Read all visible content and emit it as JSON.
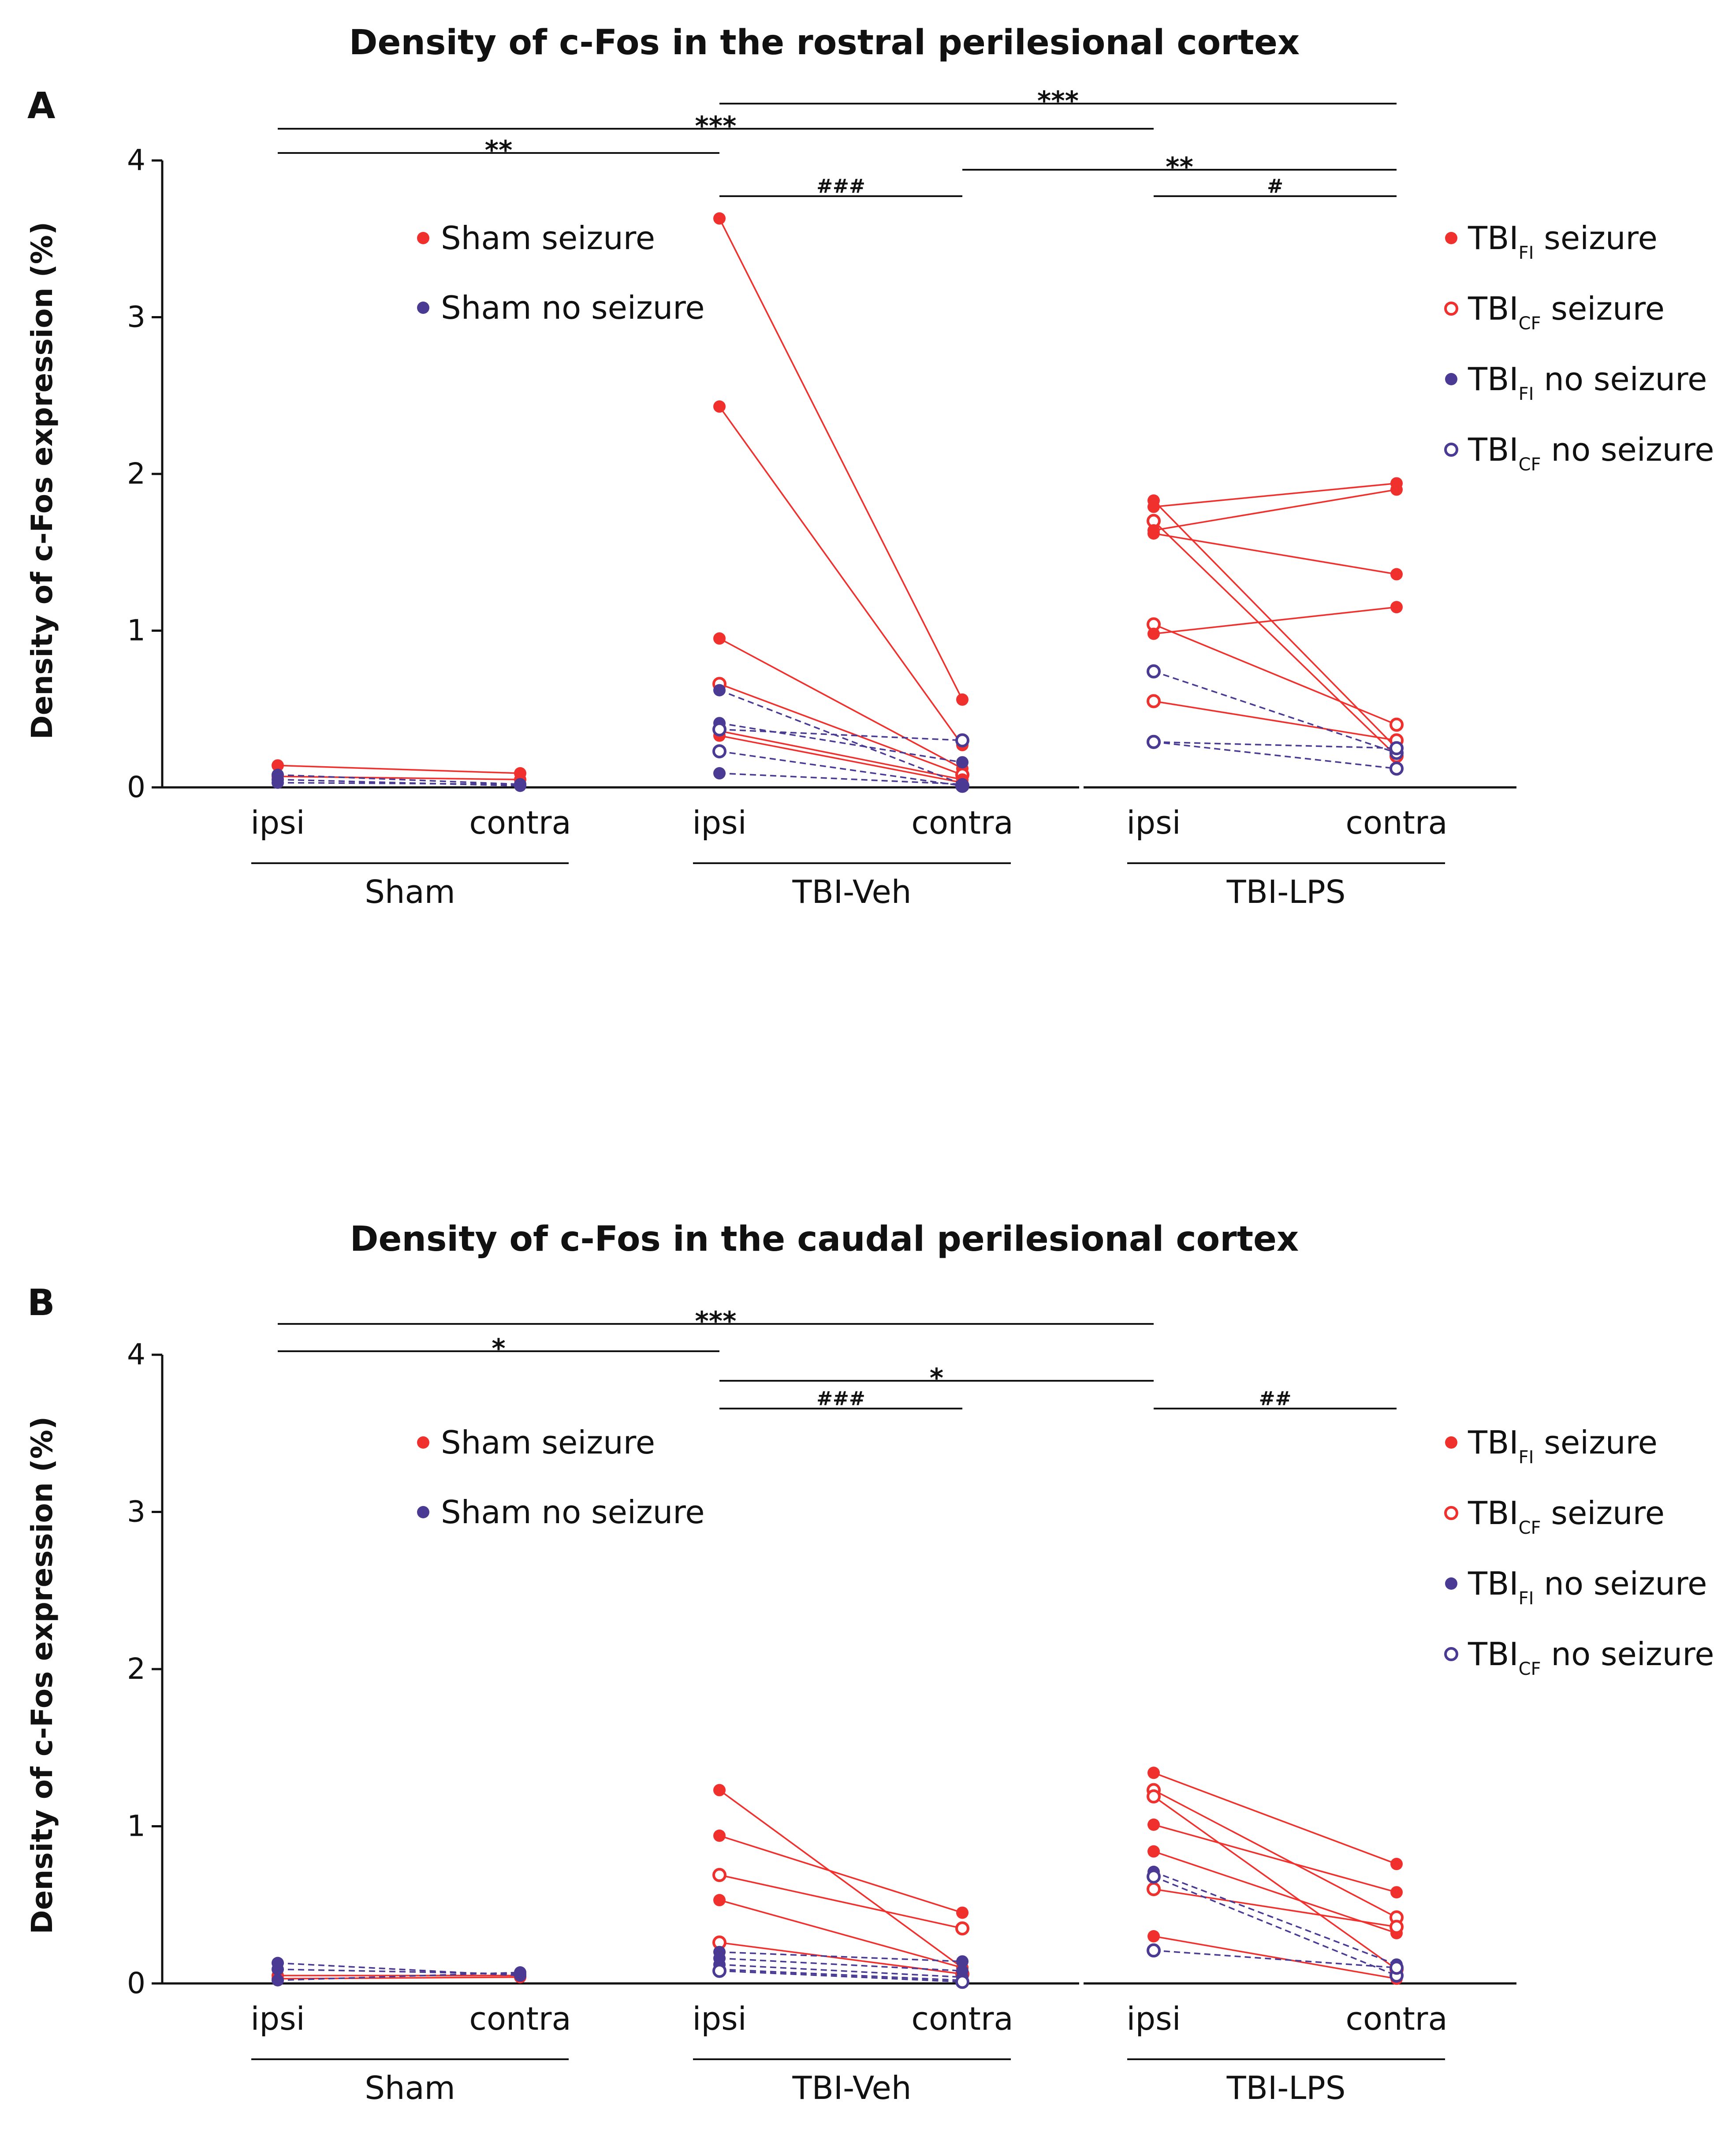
{
  "colors": {
    "seizure": "#f0302c",
    "no_seizure": "#4b3a94",
    "axis": "#111111"
  },
  "x_categories": [
    "ipsi",
    "contra"
  ],
  "chart_data": [
    {
      "type": "line",
      "panel": "A",
      "title": "Density of c-Fos in the rostral perilesional cortex",
      "ylabel": "Density of c-Fos expression (%)",
      "ylim": [
        0,
        4
      ],
      "yticks": [
        "0",
        "1",
        "2",
        "3",
        "4"
      ],
      "groups": [
        "Sham",
        "TBI-Veh",
        "TBI-LPS"
      ],
      "legend_left": [
        "Sham seizure",
        "Sham no seizure"
      ],
      "legend_right": [
        {
          "base": "TBI",
          "sub": "FI",
          "rest": " seizure"
        },
        {
          "base": "TBI",
          "sub": "CF",
          "rest": " seizure"
        },
        {
          "base": "TBI",
          "sub": "FI",
          "rest": " no seizure"
        },
        {
          "base": "TBI",
          "sub": "CF",
          "rest": " no seizure"
        }
      ],
      "significance": [
        {
          "from": "TBI-Veh ipsi",
          "to": "TBI-LPS contra",
          "label": "***"
        },
        {
          "from": "Sham ipsi",
          "to": "TBI-LPS ipsi",
          "label": "***"
        },
        {
          "from": "Sham ipsi",
          "to": "TBI-Veh ipsi",
          "label": "**"
        },
        {
          "from": "TBI-Veh contra",
          "to": "TBI-LPS contra",
          "label": "**"
        },
        {
          "from": "TBI-Veh ipsi",
          "to": "TBI-Veh contra",
          "label": "###"
        },
        {
          "from": "TBI-LPS ipsi",
          "to": "TBI-LPS contra",
          "label": "#"
        }
      ],
      "series": [
        {
          "group": "Sham",
          "class": "seizure",
          "filled": true,
          "values": [
            0.14,
            0.09
          ]
        },
        {
          "group": "Sham",
          "class": "seizure",
          "filled": true,
          "values": [
            0.07,
            0.05
          ]
        },
        {
          "group": "Sham",
          "class": "no_seizure",
          "filled": true,
          "values": [
            0.08,
            0.02
          ]
        },
        {
          "group": "Sham",
          "class": "no_seizure",
          "filled": true,
          "values": [
            0.05,
            0.01
          ]
        },
        {
          "group": "Sham",
          "class": "no_seizure",
          "filled": true,
          "values": [
            0.03,
            0.02
          ]
        },
        {
          "group": "TBI-Veh",
          "class": "seizure",
          "filled": true,
          "values": [
            3.63,
            0.56
          ]
        },
        {
          "group": "TBI-Veh",
          "class": "seizure",
          "filled": true,
          "values": [
            2.43,
            0.27
          ]
        },
        {
          "group": "TBI-Veh",
          "class": "seizure",
          "filled": true,
          "values": [
            0.95,
            0.12
          ]
        },
        {
          "group": "TBI-Veh",
          "class": "seizure",
          "filled": false,
          "values": [
            0.66,
            0.08
          ]
        },
        {
          "group": "TBI-Veh",
          "class": "seizure",
          "filled": true,
          "values": [
            0.36,
            0.05
          ]
        },
        {
          "group": "TBI-Veh",
          "class": "seizure",
          "filled": true,
          "values": [
            0.33,
            0.03
          ]
        },
        {
          "group": "TBI-Veh",
          "class": "no_seizure",
          "filled": true,
          "values": [
            0.62,
            0.02
          ]
        },
        {
          "group": "TBI-Veh",
          "class": "no_seizure",
          "filled": true,
          "values": [
            0.41,
            0.16
          ]
        },
        {
          "group": "TBI-Veh",
          "class": "no_seizure",
          "filled": false,
          "values": [
            0.37,
            0.3
          ]
        },
        {
          "group": "TBI-Veh",
          "class": "no_seizure",
          "filled": false,
          "values": [
            0.23,
            0.01
          ]
        },
        {
          "group": "TBI-Veh",
          "class": "no_seizure",
          "filled": true,
          "values": [
            0.09,
            0.02
          ]
        },
        {
          "group": "TBI-LPS",
          "class": "seizure",
          "filled": true,
          "values": [
            1.83,
            0.25
          ]
        },
        {
          "group": "TBI-LPS",
          "class": "seizure",
          "filled": true,
          "values": [
            1.79,
            1.94
          ]
        },
        {
          "group": "TBI-LPS",
          "class": "seizure",
          "filled": false,
          "values": [
            1.7,
            0.2
          ]
        },
        {
          "group": "TBI-LPS",
          "class": "seizure",
          "filled": true,
          "values": [
            1.64,
            1.9
          ]
        },
        {
          "group": "TBI-LPS",
          "class": "seizure",
          "filled": true,
          "values": [
            1.62,
            1.36
          ]
        },
        {
          "group": "TBI-LPS",
          "class": "seizure",
          "filled": false,
          "values": [
            1.04,
            0.4
          ]
        },
        {
          "group": "TBI-LPS",
          "class": "seizure",
          "filled": true,
          "values": [
            0.98,
            1.15
          ]
        },
        {
          "group": "TBI-LPS",
          "class": "seizure",
          "filled": false,
          "values": [
            0.55,
            0.3
          ]
        },
        {
          "group": "TBI-LPS",
          "class": "no_seizure",
          "filled": false,
          "values": [
            0.74,
            0.22
          ]
        },
        {
          "group": "TBI-LPS",
          "class": "no_seizure",
          "filled": false,
          "values": [
            0.29,
            0.25
          ]
        },
        {
          "group": "TBI-LPS",
          "class": "no_seizure",
          "filled": false,
          "values": [
            0.29,
            0.12
          ]
        }
      ]
    },
    {
      "type": "line",
      "panel": "B",
      "title": "Density of c-Fos in the caudal perilesional cortex",
      "ylabel": "Density of c-Fos expression (%)",
      "ylim": [
        0,
        4
      ],
      "yticks": [
        "0",
        "1",
        "2",
        "3",
        "4"
      ],
      "groups": [
        "Sham",
        "TBI-Veh",
        "TBI-LPS"
      ],
      "legend_left": [
        "Sham seizure",
        "Sham no seizure"
      ],
      "legend_right": [
        {
          "base": "TBI",
          "sub": "FI",
          "rest": " seizure"
        },
        {
          "base": "TBI",
          "sub": "CF",
          "rest": " seizure"
        },
        {
          "base": "TBI",
          "sub": "FI",
          "rest": " no seizure"
        },
        {
          "base": "TBI",
          "sub": "CF",
          "rest": " no seizure"
        }
      ],
      "significance": [
        {
          "from": "Sham ipsi",
          "to": "TBI-LPS ipsi",
          "label": "***"
        },
        {
          "from": "Sham ipsi",
          "to": "TBI-Veh ipsi",
          "label": "*"
        },
        {
          "from": "TBI-Veh ipsi",
          "to": "TBI-LPS ipsi",
          "label": "*"
        },
        {
          "from": "TBI-Veh ipsi",
          "to": "TBI-Veh contra",
          "label": "###"
        },
        {
          "from": "TBI-LPS ipsi",
          "to": "TBI-LPS contra",
          "label": "##"
        }
      ],
      "series": [
        {
          "group": "Sham",
          "class": "seizure",
          "filled": true,
          "values": [
            0.05,
            0.05
          ]
        },
        {
          "group": "Sham",
          "class": "seizure",
          "filled": true,
          "values": [
            0.03,
            0.04
          ]
        },
        {
          "group": "Sham",
          "class": "no_seizure",
          "filled": true,
          "values": [
            0.13,
            0.05
          ]
        },
        {
          "group": "Sham",
          "class": "no_seizure",
          "filled": true,
          "values": [
            0.09,
            0.06
          ]
        },
        {
          "group": "Sham",
          "class": "no_seizure",
          "filled": true,
          "values": [
            0.02,
            0.07
          ]
        },
        {
          "group": "TBI-Veh",
          "class": "seizure",
          "filled": true,
          "values": [
            1.23,
            0.1
          ]
        },
        {
          "group": "TBI-Veh",
          "class": "seizure",
          "filled": true,
          "values": [
            0.94,
            0.45
          ]
        },
        {
          "group": "TBI-Veh",
          "class": "seizure",
          "filled": false,
          "values": [
            0.69,
            0.35
          ]
        },
        {
          "group": "TBI-Veh",
          "class": "seizure",
          "filled": true,
          "values": [
            0.53,
            0.1
          ]
        },
        {
          "group": "TBI-Veh",
          "class": "seizure",
          "filled": false,
          "values": [
            0.26,
            0.06
          ]
        },
        {
          "group": "TBI-Veh",
          "class": "no_seizure",
          "filled": true,
          "values": [
            0.2,
            0.14
          ]
        },
        {
          "group": "TBI-Veh",
          "class": "no_seizure",
          "filled": true,
          "values": [
            0.16,
            0.08
          ]
        },
        {
          "group": "TBI-Veh",
          "class": "no_seizure",
          "filled": true,
          "values": [
            0.12,
            0.04
          ]
        },
        {
          "group": "TBI-Veh",
          "class": "no_seizure",
          "filled": true,
          "values": [
            0.09,
            0.02
          ]
        },
        {
          "group": "TBI-Veh",
          "class": "no_seizure",
          "filled": false,
          "values": [
            0.08,
            0.01
          ]
        },
        {
          "group": "TBI-LPS",
          "class": "seizure",
          "filled": true,
          "values": [
            1.34,
            0.76
          ]
        },
        {
          "group": "TBI-LPS",
          "class": "seizure",
          "filled": false,
          "values": [
            1.23,
            0.42
          ]
        },
        {
          "group": "TBI-LPS",
          "class": "seizure",
          "filled": false,
          "values": [
            1.19,
            0.09
          ]
        },
        {
          "group": "TBI-LPS",
          "class": "seizure",
          "filled": true,
          "values": [
            1.01,
            0.58
          ]
        },
        {
          "group": "TBI-LPS",
          "class": "seizure",
          "filled": true,
          "values": [
            0.84,
            0.32
          ]
        },
        {
          "group": "TBI-LPS",
          "class": "seizure",
          "filled": false,
          "values": [
            0.6,
            0.36
          ]
        },
        {
          "group": "TBI-LPS",
          "class": "seizure",
          "filled": true,
          "values": [
            0.3,
            0.03
          ]
        },
        {
          "group": "TBI-LPS",
          "class": "no_seizure",
          "filled": true,
          "values": [
            0.71,
            0.12
          ]
        },
        {
          "group": "TBI-LPS",
          "class": "no_seizure",
          "filled": false,
          "values": [
            0.68,
            0.05
          ]
        },
        {
          "group": "TBI-LPS",
          "class": "no_seizure",
          "filled": false,
          "values": [
            0.21,
            0.1
          ]
        }
      ]
    }
  ]
}
